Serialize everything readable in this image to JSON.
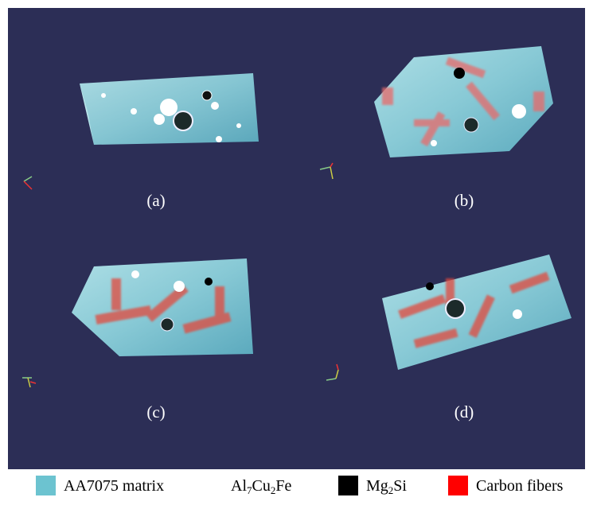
{
  "panels": [
    {
      "label": "(a)"
    },
    {
      "label": "(b)"
    },
    {
      "label": "(c)"
    },
    {
      "label": "(d)"
    }
  ],
  "legend": [
    {
      "color": "#6cc3d0",
      "label": [
        {
          "text": "AA7075 matrix"
        }
      ]
    },
    {
      "color": "#ffffff",
      "label": [
        {
          "text": "Al"
        },
        {
          "text": "7",
          "sub": true
        },
        {
          "text": "Cu"
        },
        {
          "text": "2",
          "sub": true
        },
        {
          "text": "Fe"
        }
      ]
    },
    {
      "color": "#000000",
      "label": [
        {
          "text": "Mg"
        },
        {
          "text": "2",
          "sub": true
        },
        {
          "text": "Si"
        }
      ]
    },
    {
      "color": "#ff0000",
      "label": [
        {
          "text": "Carbon fibers"
        }
      ]
    }
  ]
}
